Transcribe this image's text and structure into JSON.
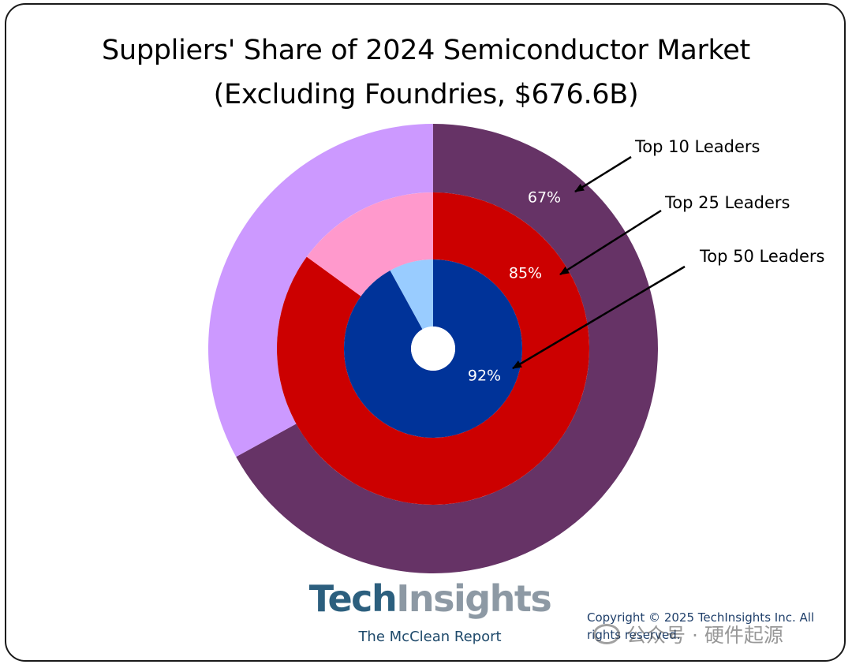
{
  "chart_data": {
    "type": "nested-donut",
    "title": "Suppliers' Share of 2024 Semiconductor Market",
    "subtitle": "(Excluding Foundries, $676.6B)",
    "rings": [
      {
        "label": "Top 10 Leaders",
        "value": 67,
        "value_label": "67%",
        "colors": {
          "share": "#663366",
          "rest": "#cc99ff"
        }
      },
      {
        "label": "Top 25 Leaders",
        "value": 85,
        "value_label": "85%",
        "colors": {
          "share": "#cc0000",
          "rest": "#ff99cc"
        }
      },
      {
        "label": "Top 50 Leaders",
        "value": 92,
        "value_label": "92%",
        "colors": {
          "share": "#003399",
          "rest": "#99ccff"
        }
      }
    ]
  },
  "branding": {
    "logo_part1": "Tech",
    "logo_part2": "Insights",
    "report_name": "The McClean Report"
  },
  "copyright": "Copyright © 2025 TechInsights Inc.  All rights reserved.",
  "watermark": "公众号 · 硬件起源"
}
